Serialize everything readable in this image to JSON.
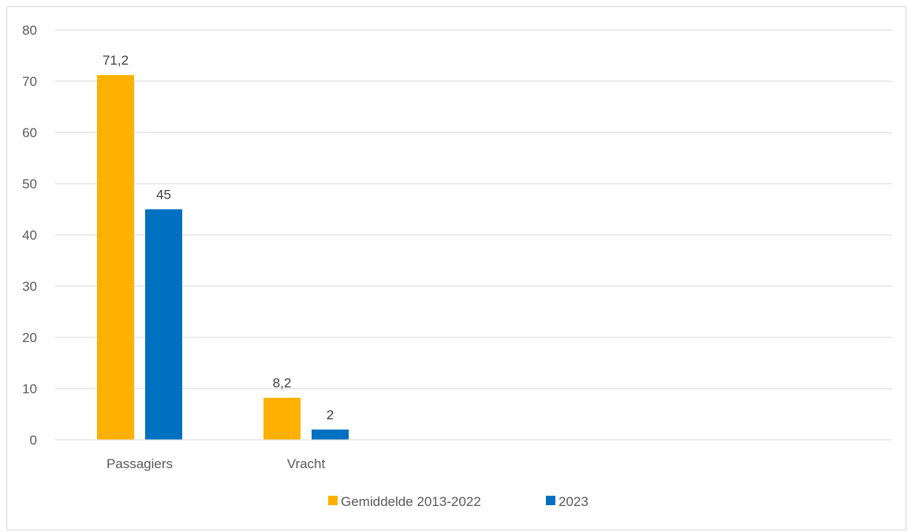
{
  "chart_data": {
    "type": "bar",
    "categories": [
      "Passagiers",
      "Vracht"
    ],
    "series": [
      {
        "name": "Gemiddelde 2013-2022",
        "values": [
          71.2,
          8.2
        ],
        "labels": [
          "71,2",
          "8,2"
        ],
        "color": "#ffb000"
      },
      {
        "name": "2023",
        "values": [
          45,
          2
        ],
        "labels": [
          "45",
          "2"
        ],
        "color": "#0070c0"
      }
    ],
    "ylim": [
      0,
      80
    ],
    "yticks": [
      0,
      10,
      20,
      30,
      40,
      50,
      60,
      70,
      80
    ],
    "grid": true,
    "legend": "bottom"
  }
}
